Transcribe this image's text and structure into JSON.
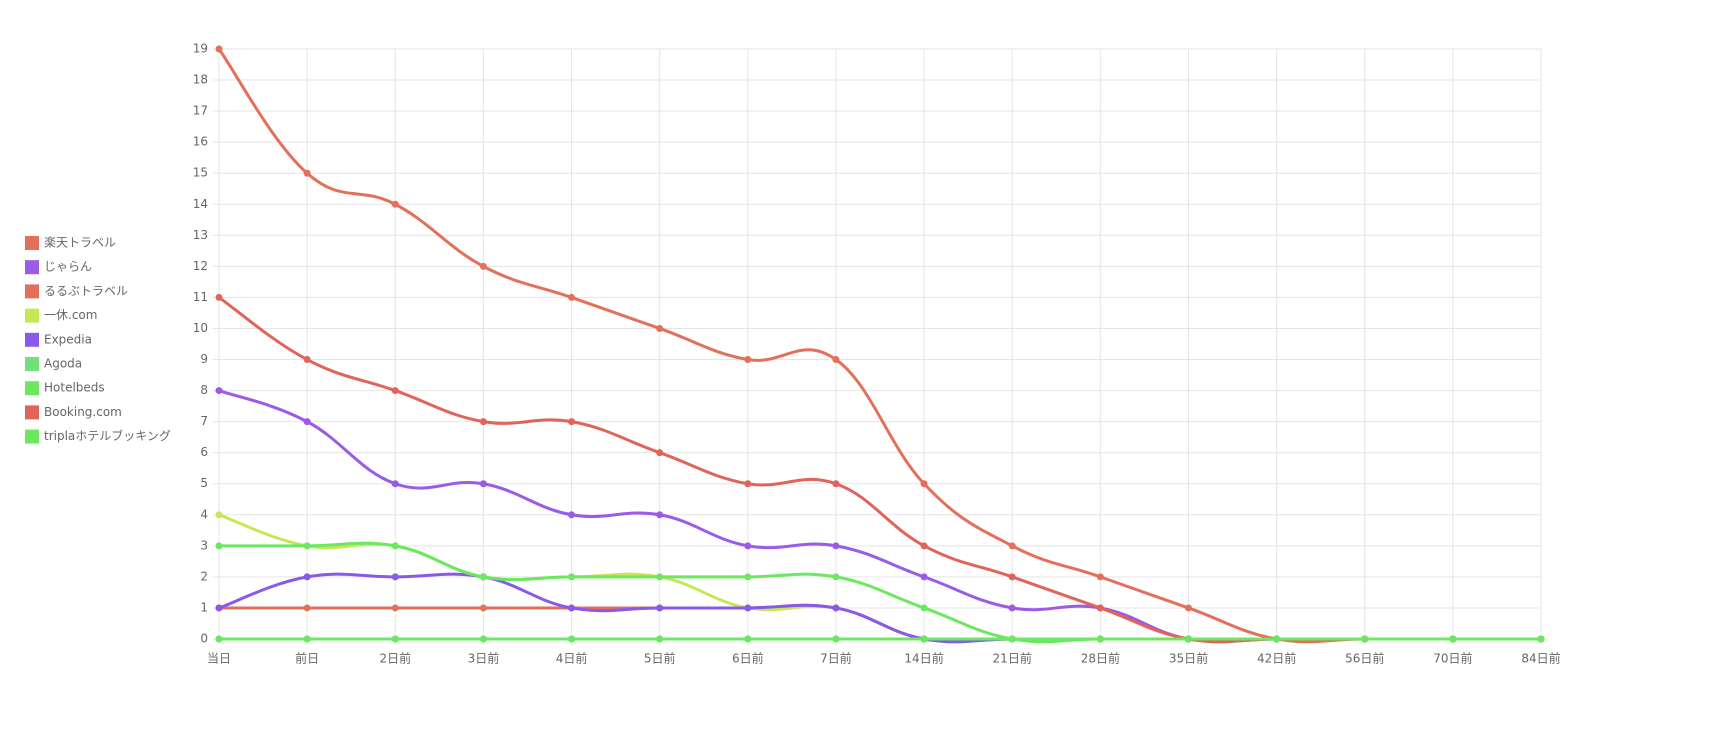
{
  "chart_data": {
    "type": "line",
    "categories": [
      "当日",
      "前日",
      "2日前",
      "3日前",
      "4日前",
      "5日前",
      "6日前",
      "7日前",
      "14日前",
      "21日前",
      "28日前",
      "35日前",
      "42日前",
      "56日前",
      "70日前",
      "84日前"
    ],
    "series": [
      {
        "name": "楽天トラベル",
        "color": "#e2705a",
        "values": [
          19,
          15,
          14,
          12,
          11,
          10,
          9,
          9,
          5,
          3,
          2,
          1,
          0,
          0,
          0,
          0
        ]
      },
      {
        "name": "じゃらん",
        "color": "#9b5ae8",
        "values": [
          8,
          7,
          5,
          5,
          4,
          4,
          3,
          3,
          2,
          1,
          1,
          0,
          0,
          0,
          0,
          0
        ]
      },
      {
        "name": "るるぶトラベル",
        "color": "#e2705a",
        "values": [
          1,
          1,
          1,
          1,
          1,
          1,
          1,
          1,
          0,
          0,
          0,
          0,
          0,
          0,
          0,
          0
        ]
      },
      {
        "name": "一休.com",
        "color": "#c6e855",
        "values": [
          4,
          3,
          3,
          2,
          2,
          2,
          1,
          1,
          0,
          0,
          0,
          0,
          0,
          0,
          0,
          0
        ]
      },
      {
        "name": "Expedia",
        "color": "#8a58ea",
        "values": [
          1,
          2,
          2,
          2,
          1,
          1,
          1,
          1,
          0,
          0,
          0,
          0,
          0,
          0,
          0,
          0
        ]
      },
      {
        "name": "Agoda",
        "color": "#72e07a",
        "values": [
          0,
          0,
          0,
          0,
          0,
          0,
          0,
          0,
          0,
          0,
          0,
          0,
          0,
          0,
          0,
          0
        ]
      },
      {
        "name": "Hotelbeds",
        "color": "#6ce860",
        "values": [
          0,
          0,
          0,
          0,
          0,
          0,
          0,
          0,
          0,
          0,
          0,
          0,
          0,
          0,
          0,
          0
        ]
      },
      {
        "name": "Booking.com",
        "color": "#e0645a",
        "values": [
          11,
          9,
          8,
          7,
          7,
          6,
          5,
          5,
          3,
          2,
          1,
          0,
          0,
          0,
          0,
          0
        ]
      },
      {
        "name": "triplaホテルブッキング",
        "color": "#6ce860",
        "values": [
          3,
          3,
          3,
          2,
          2,
          2,
          2,
          2,
          1,
          0,
          0,
          0,
          0,
          0,
          0,
          0
        ]
      }
    ],
    "ylim": [
      0,
      19
    ],
    "yticks": [
      0,
      1,
      2,
      3,
      4,
      5,
      6,
      7,
      8,
      9,
      10,
      11,
      12,
      13,
      14,
      15,
      16,
      17,
      18,
      19
    ],
    "grid": true,
    "legend": "left"
  }
}
